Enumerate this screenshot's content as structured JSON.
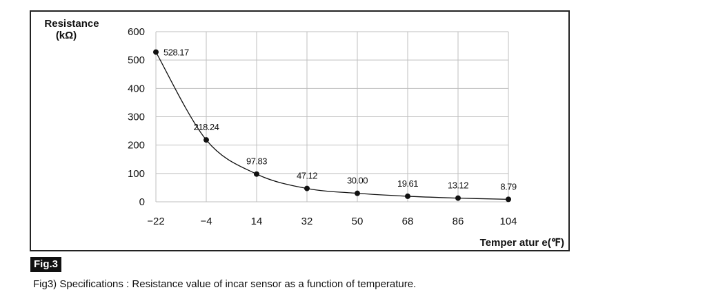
{
  "figure": {
    "badge": "Fig.3",
    "caption": "Fig3) Specifications : Resistance value of incar sensor as a function of temperature."
  },
  "chart_data": {
    "type": "line",
    "ylabel_line1": "Resistance",
    "ylabel_line2": "(kΩ)",
    "xlabel": "Temper atur e(℉)",
    "x": [
      -22,
      -4,
      14,
      32,
      50,
      68,
      86,
      104
    ],
    "x_tick_labels": [
      "−22",
      "−4",
      "14",
      "32",
      "50",
      "68",
      "86",
      "104"
    ],
    "y_ticks": [
      0,
      100,
      200,
      300,
      400,
      500,
      600
    ],
    "ylim": [
      0,
      600
    ],
    "xlim": [
      -22,
      104
    ],
    "grid": true,
    "series": [
      {
        "values": [
          528.17,
          218.24,
          97.83,
          47.12,
          30.0,
          19.61,
          13.12,
          8.79
        ],
        "labels": [
          "528.17",
          "218.24",
          "97.83",
          "47.12",
          "30.00",
          "19.61",
          "13.12",
          "8.79"
        ]
      }
    ],
    "colors": {
      "line": "#111111",
      "grid": "#bfbfbf",
      "marker": "#111111"
    }
  }
}
